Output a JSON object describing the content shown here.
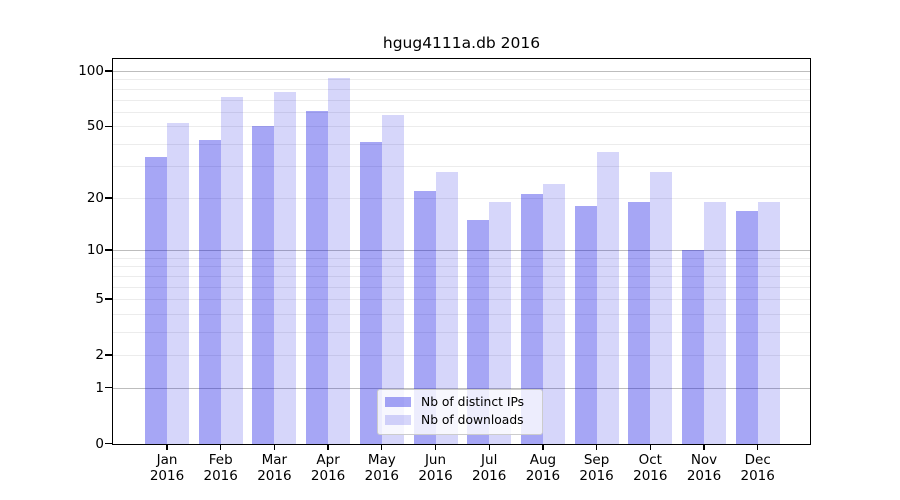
{
  "figure": {
    "background": "#ffffff"
  },
  "chart_data": {
    "type": "bar",
    "title": "hgug4111a.db 2016",
    "categories": [
      "Jan",
      "Feb",
      "Mar",
      "Apr",
      "May",
      "Jun",
      "Jul",
      "Aug",
      "Sep",
      "Oct",
      "Nov",
      "Dec"
    ],
    "x_sub_label": "2016",
    "series": [
      {
        "name": "Nb of distinct IPs",
        "key": "distinct-ips",
        "color": "rgba(0,0,225,0.35)",
        "values": [
          34,
          42,
          50,
          61,
          41,
          22,
          15,
          21,
          18,
          19,
          10,
          17
        ]
      },
      {
        "name": "Nb of downloads",
        "key": "downloads",
        "color": "rgba(0,0,225,0.16)",
        "values": [
          52,
          72,
          77,
          92,
          58,
          28,
          19,
          24,
          36,
          28,
          19,
          19
        ]
      }
    ],
    "y_scale": "log10(1+x)",
    "ylim": [
      0,
      116
    ],
    "y_tick_values": [
      0,
      1,
      2,
      5,
      10,
      20,
      50,
      100
    ],
    "y_major_gridlines": [
      1,
      10,
      100
    ],
    "y_minor_gridlines": [
      2,
      3,
      4,
      5,
      6,
      7,
      8,
      9,
      20,
      30,
      40,
      50,
      60,
      70,
      80,
      90
    ],
    "grid": true,
    "legend_position": "lower-center",
    "colors": {
      "major_grid": "#bdbdbd",
      "minor_grid": "#ececec",
      "frame": "#000000",
      "text": "#000000"
    }
  }
}
